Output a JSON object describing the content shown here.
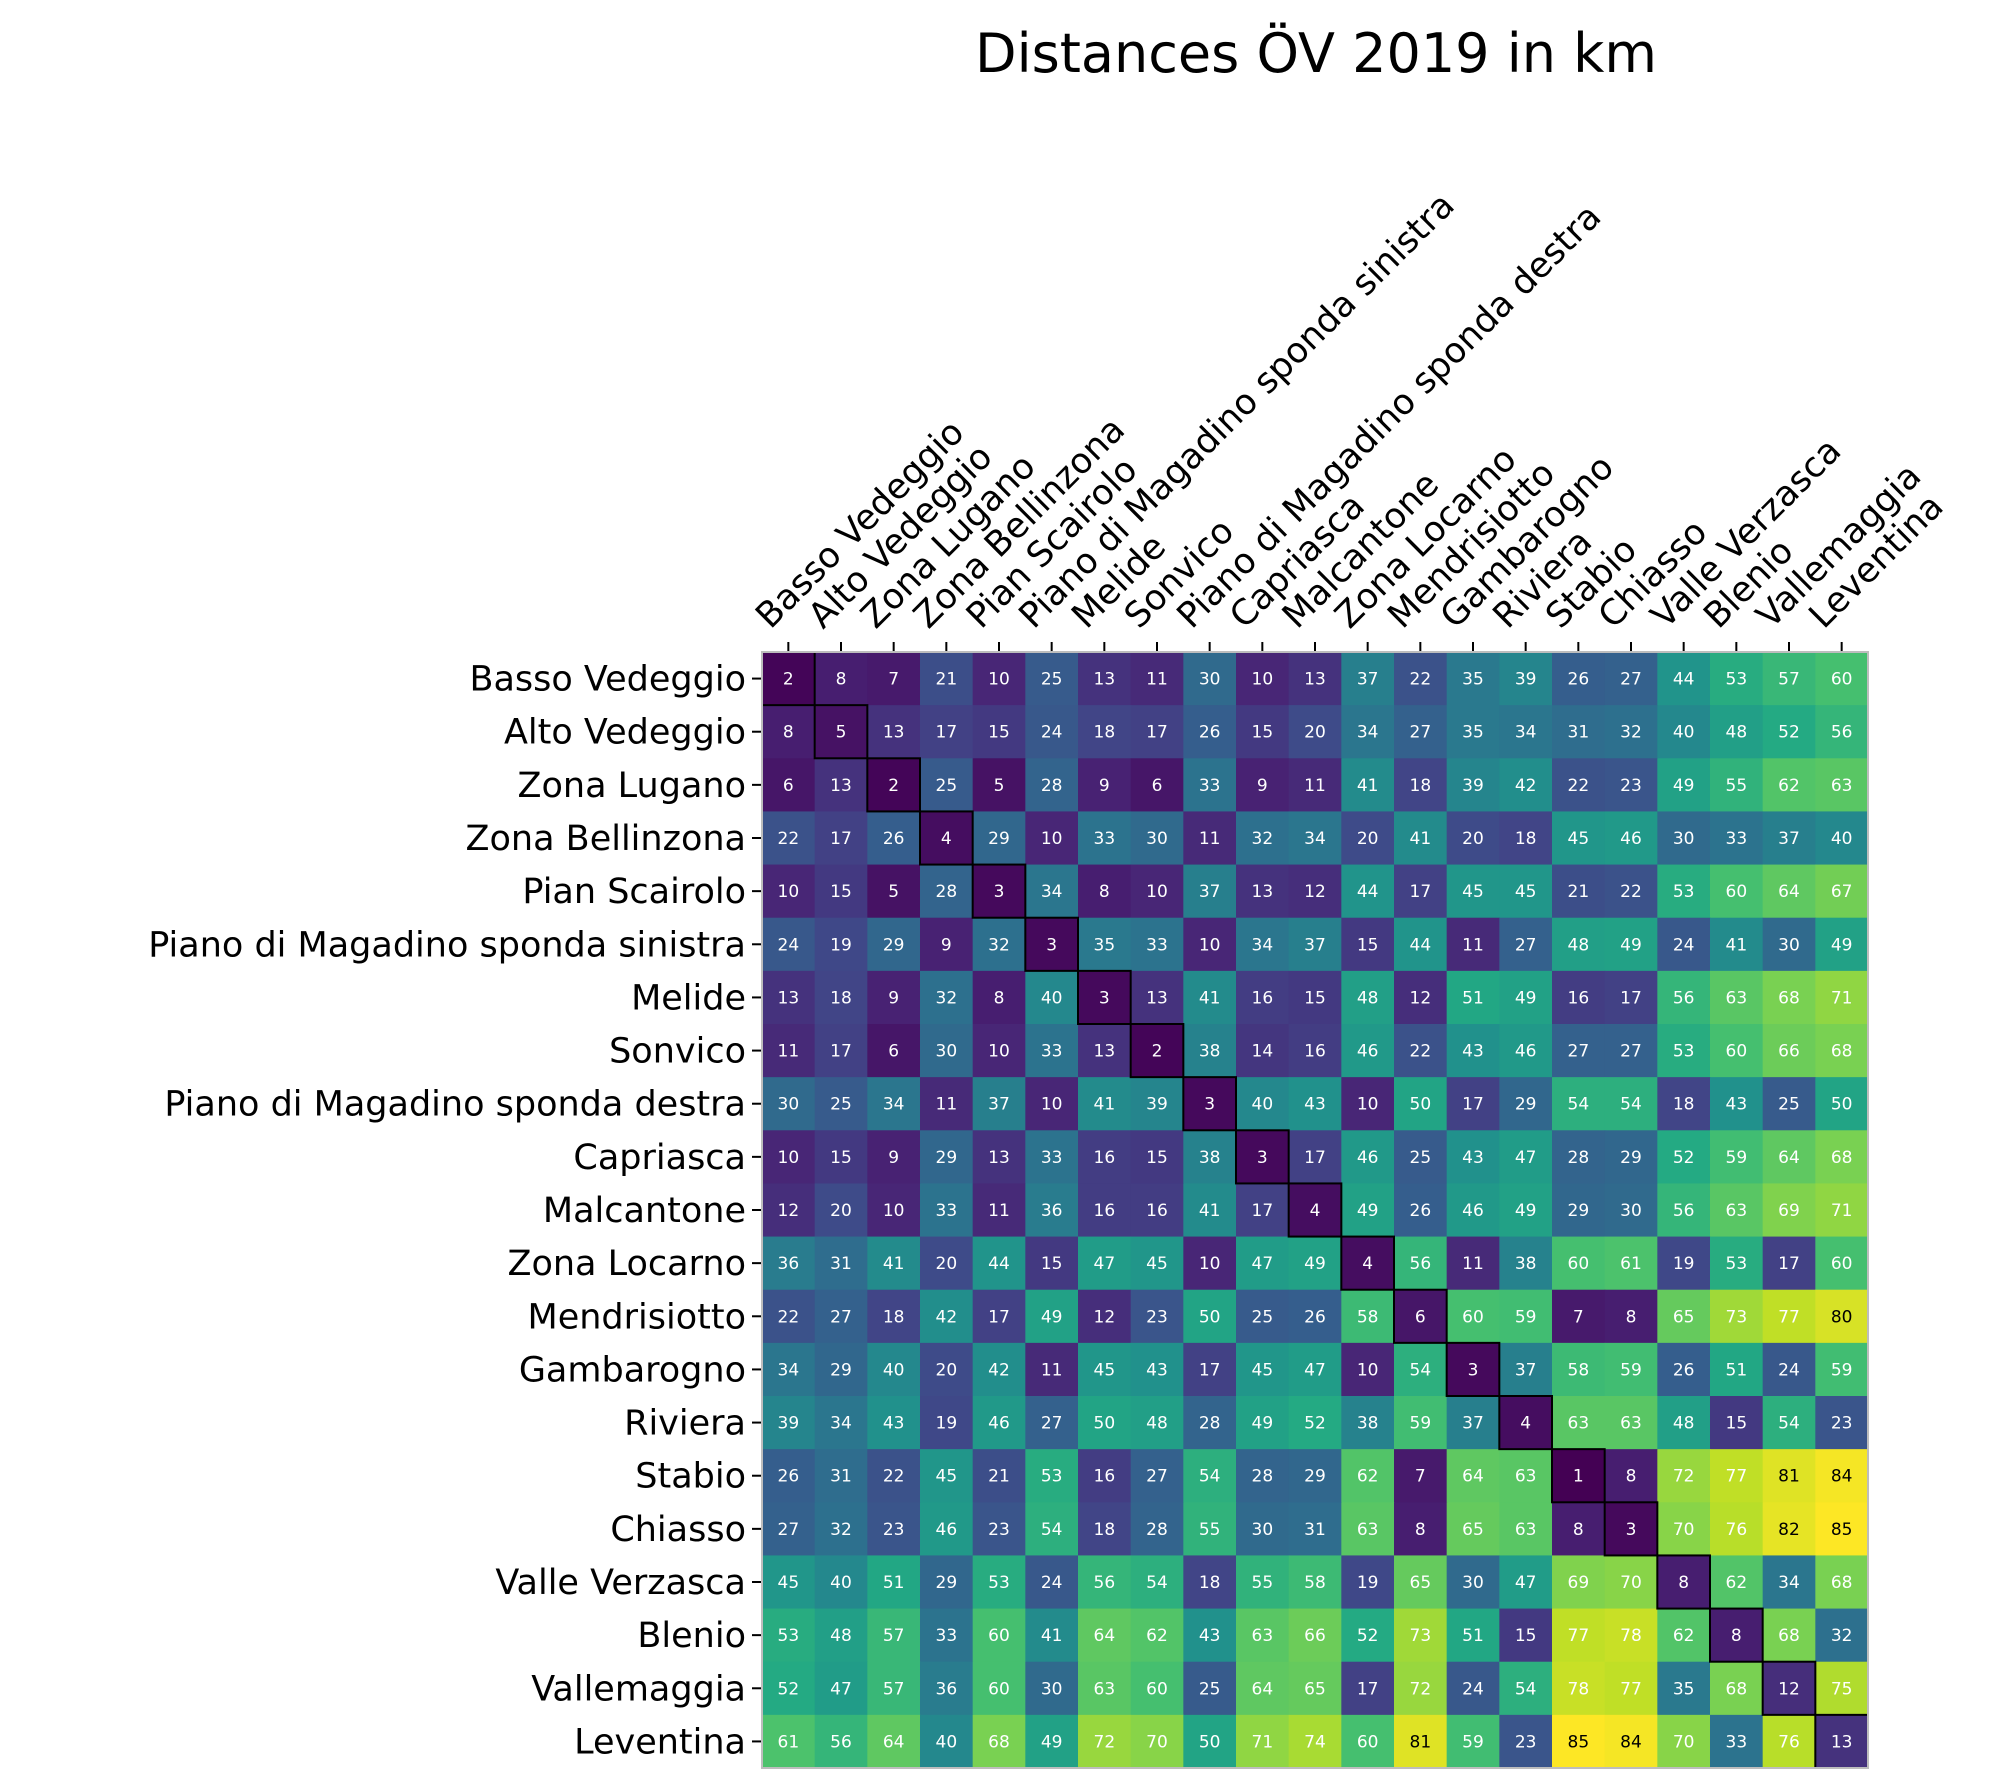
{
  "chart_data": {
    "type": "heatmap",
    "title": "Distances ÖV 2019 in km",
    "colormap": "viridis",
    "xlabel": "",
    "ylabel": "",
    "rows": [
      "Basso Vedeggio",
      "Alto Vedeggio",
      "Zona Lugano",
      "Zona Bellinzona",
      "Pian Scairolo",
      "Piano di Magadino sponda sinistra",
      "Melide",
      "Sonvico",
      "Piano di Magadino sponda destra",
      "Capriasca",
      "Malcantone",
      "Zona Locarno",
      "Mendrisiotto",
      "Gambarogno",
      "Riviera",
      "Stabio",
      "Chiasso",
      "Valle Verzasca",
      "Blenio",
      "Vallemaggia",
      "Leventina"
    ],
    "columns": [
      "Basso Vedeggio",
      "Alto Vedeggio",
      "Zona Lugano",
      "Zona Bellinzona",
      "Pian Scairolo",
      "Piano di Magadino sponda sinistra",
      "Melide",
      "Sonvico",
      "Piano di Magadino sponda destra",
      "Capriasca",
      "Malcantone",
      "Zona Locarno",
      "Mendrisiotto",
      "Gambarogno",
      "Riviera",
      "Stabio",
      "Chiasso",
      "Valle Verzasca",
      "Blenio",
      "Vallemaggia",
      "Leventina"
    ],
    "values": [
      [
        2,
        8,
        7,
        21,
        10,
        25,
        13,
        11,
        30,
        10,
        13,
        37,
        22,
        35,
        39,
        26,
        27,
        44,
        53,
        57,
        60
      ],
      [
        8,
        5,
        13,
        17,
        15,
        24,
        18,
        17,
        26,
        15,
        20,
        34,
        27,
        35,
        34,
        31,
        32,
        40,
        48,
        52,
        56
      ],
      [
        6,
        13,
        2,
        25,
        5,
        28,
        9,
        6,
        33,
        9,
        11,
        41,
        18,
        39,
        42,
        22,
        23,
        49,
        55,
        62,
        63
      ],
      [
        22,
        17,
        26,
        4,
        29,
        10,
        33,
        30,
        11,
        32,
        34,
        20,
        41,
        20,
        18,
        45,
        46,
        30,
        33,
        37,
        40
      ],
      [
        10,
        15,
        5,
        28,
        3,
        34,
        8,
        10,
        37,
        13,
        12,
        44,
        17,
        45,
        45,
        21,
        22,
        53,
        60,
        64,
        67
      ],
      [
        24,
        19,
        29,
        9,
        32,
        3,
        35,
        33,
        10,
        34,
        37,
        15,
        44,
        11,
        27,
        48,
        49,
        24,
        41,
        30,
        49
      ],
      [
        13,
        18,
        9,
        32,
        8,
        40,
        3,
        13,
        41,
        16,
        15,
        48,
        12,
        51,
        49,
        16,
        17,
        56,
        63,
        68,
        71
      ],
      [
        11,
        17,
        6,
        30,
        10,
        33,
        13,
        2,
        38,
        14,
        16,
        46,
        22,
        43,
        46,
        27,
        27,
        53,
        60,
        66,
        68
      ],
      [
        30,
        25,
        34,
        11,
        37,
        10,
        41,
        39,
        3,
        40,
        43,
        10,
        50,
        17,
        29,
        54,
        54,
        18,
        43,
        25,
        50
      ],
      [
        10,
        15,
        9,
        29,
        13,
        33,
        16,
        15,
        38,
        3,
        17,
        46,
        25,
        43,
        47,
        28,
        29,
        52,
        59,
        64,
        68
      ],
      [
        12,
        20,
        10,
        33,
        11,
        36,
        16,
        16,
        41,
        17,
        4,
        49,
        26,
        46,
        49,
        29,
        30,
        56,
        63,
        69,
        71
      ],
      [
        36,
        31,
        41,
        20,
        44,
        15,
        47,
        45,
        10,
        47,
        49,
        4,
        56,
        11,
        38,
        60,
        61,
        19,
        53,
        17,
        60
      ],
      [
        22,
        27,
        18,
        42,
        17,
        49,
        12,
        23,
        50,
        25,
        26,
        58,
        6,
        60,
        59,
        7,
        8,
        65,
        73,
        77,
        80
      ],
      [
        34,
        29,
        40,
        20,
        42,
        11,
        45,
        43,
        17,
        45,
        47,
        10,
        54,
        3,
        37,
        58,
        59,
        26,
        51,
        24,
        59
      ],
      [
        39,
        34,
        43,
        19,
        46,
        27,
        50,
        48,
        28,
        49,
        52,
        38,
        59,
        37,
        4,
        63,
        63,
        48,
        15,
        54,
        23
      ],
      [
        26,
        31,
        22,
        45,
        21,
        53,
        16,
        27,
        54,
        28,
        29,
        62,
        7,
        64,
        63,
        1,
        8,
        72,
        77,
        81,
        84
      ],
      [
        27,
        32,
        23,
        46,
        23,
        54,
        18,
        28,
        55,
        30,
        31,
        63,
        8,
        65,
        63,
        8,
        3,
        70,
        76,
        82,
        85
      ],
      [
        45,
        40,
        51,
        29,
        53,
        24,
        56,
        54,
        18,
        55,
        58,
        19,
        65,
        30,
        47,
        69,
        70,
        8,
        62,
        34,
        68
      ],
      [
        53,
        48,
        57,
        33,
        60,
        41,
        64,
        62,
        43,
        63,
        66,
        52,
        73,
        51,
        15,
        77,
        78,
        62,
        8,
        68,
        32
      ],
      [
        52,
        47,
        57,
        36,
        60,
        30,
        63,
        60,
        25,
        64,
        65,
        17,
        72,
        24,
        54,
        78,
        77,
        35,
        68,
        12,
        75
      ],
      [
        61,
        56,
        64,
        40,
        68,
        49,
        72,
        70,
        50,
        71,
        74,
        60,
        81,
        59,
        23,
        85,
        84,
        70,
        33,
        76,
        13
      ]
    ],
    "vmin": 1,
    "vmax": 85,
    "diagonal_outlined": true,
    "grid": false,
    "legend": "none"
  }
}
